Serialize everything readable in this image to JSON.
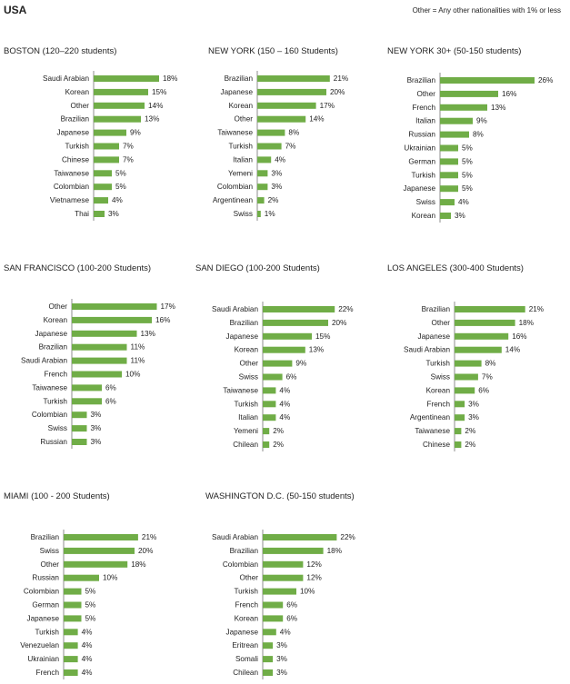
{
  "page": {
    "title": "USA",
    "note": "Other = Any other nationalities with 1% or less"
  },
  "colors": {
    "bar": "#70ad47",
    "axis": "#8c8c8c"
  },
  "chart_data": [
    {
      "type": "bar",
      "orientation": "horizontal",
      "title": "BOSTON (120–220 students)",
      "categories": [
        "Saudi Arabian",
        "Korean",
        "Other",
        "Brazilian",
        "Japanese",
        "Turkish",
        "Chinese",
        "Taiwanese",
        "Colombian",
        "Vietnamese",
        "Thai"
      ],
      "values": [
        18,
        15,
        14,
        13,
        9,
        7,
        7,
        5,
        5,
        4,
        3
      ],
      "value_suffix": "%"
    },
    {
      "type": "bar",
      "orientation": "horizontal",
      "title": "NEW YORK (150 – 160 Students)",
      "categories": [
        "Brazilian",
        "Japanese",
        "Korean",
        "Other",
        "Taiwanese",
        "Turkish",
        "Italian",
        "Yemeni",
        "Colombian",
        "Argentinean",
        "Swiss"
      ],
      "values": [
        21,
        20,
        17,
        14,
        8,
        7,
        4,
        3,
        3,
        2,
        1
      ],
      "value_suffix": "%"
    },
    {
      "type": "bar",
      "orientation": "horizontal",
      "title": "NEW YORK 30+ (50-150 students)",
      "categories": [
        "Brazilian",
        "Other",
        "French",
        "Italian",
        "Russian",
        "Ukrainian",
        "German",
        "Turkish",
        "Japanese",
        "Swiss",
        "Korean"
      ],
      "values": [
        26,
        16,
        13,
        9,
        8,
        5,
        5,
        5,
        5,
        4,
        3
      ],
      "value_suffix": "%"
    },
    {
      "type": "bar",
      "orientation": "horizontal",
      "title": "SAN FRANCISCO (100-200 Students)",
      "categories": [
        "Other",
        "Korean",
        "Japanese",
        "Brazilian",
        "Saudi Arabian",
        "French",
        "Taiwanese",
        "Turkish",
        "Colombian",
        "Swiss",
        "Russian"
      ],
      "values": [
        17,
        16,
        13,
        11,
        11,
        10,
        6,
        6,
        3,
        3,
        3
      ],
      "value_suffix": "%"
    },
    {
      "type": "bar",
      "orientation": "horizontal",
      "title": "SAN DIEGO (100-200 Students)",
      "categories": [
        "Saudi Arabian",
        "Brazilian",
        "Japanese",
        "Korean",
        "Other",
        "Swiss",
        "Taiwanese",
        "Turkish",
        "Italian",
        "Yemeni",
        "Chilean"
      ],
      "values": [
        22,
        20,
        15,
        13,
        9,
        6,
        4,
        4,
        4,
        2,
        2
      ],
      "value_suffix": "%"
    },
    {
      "type": "bar",
      "orientation": "horizontal",
      "title": "LOS ANGELES (300-400 Students)",
      "categories": [
        "Brazilian",
        "Other",
        "Japanese",
        "Saudi Arabian",
        "Turkish",
        "Swiss",
        "Korean",
        "French",
        "Argentinean",
        "Taiwanese",
        "Chinese"
      ],
      "values": [
        21,
        18,
        16,
        14,
        8,
        7,
        6,
        3,
        3,
        2,
        2
      ],
      "value_suffix": "%"
    },
    {
      "type": "bar",
      "orientation": "horizontal",
      "title": "MIAMI (100 - 200 Students)",
      "categories": [
        "Brazilian",
        "Swiss",
        "Other",
        "Russian",
        "Colombian",
        "German",
        "Japanese",
        "Turkish",
        "Venezuelan",
        "Ukrainian",
        "French"
      ],
      "values": [
        21,
        20,
        18,
        10,
        5,
        5,
        5,
        4,
        4,
        4,
        4
      ],
      "value_suffix": "%"
    },
    {
      "type": "bar",
      "orientation": "horizontal",
      "title": "WASHINGTON D.C. (50-150 students)",
      "categories": [
        "Saudi Arabian",
        "Brazilian",
        "Colombian",
        "Other",
        "Turkish",
        "French",
        "Korean",
        "Japanese",
        "Eritrean",
        "Somali",
        "Chilean"
      ],
      "values": [
        22,
        18,
        12,
        12,
        10,
        6,
        6,
        4,
        3,
        3,
        3
      ],
      "value_suffix": "%"
    }
  ]
}
